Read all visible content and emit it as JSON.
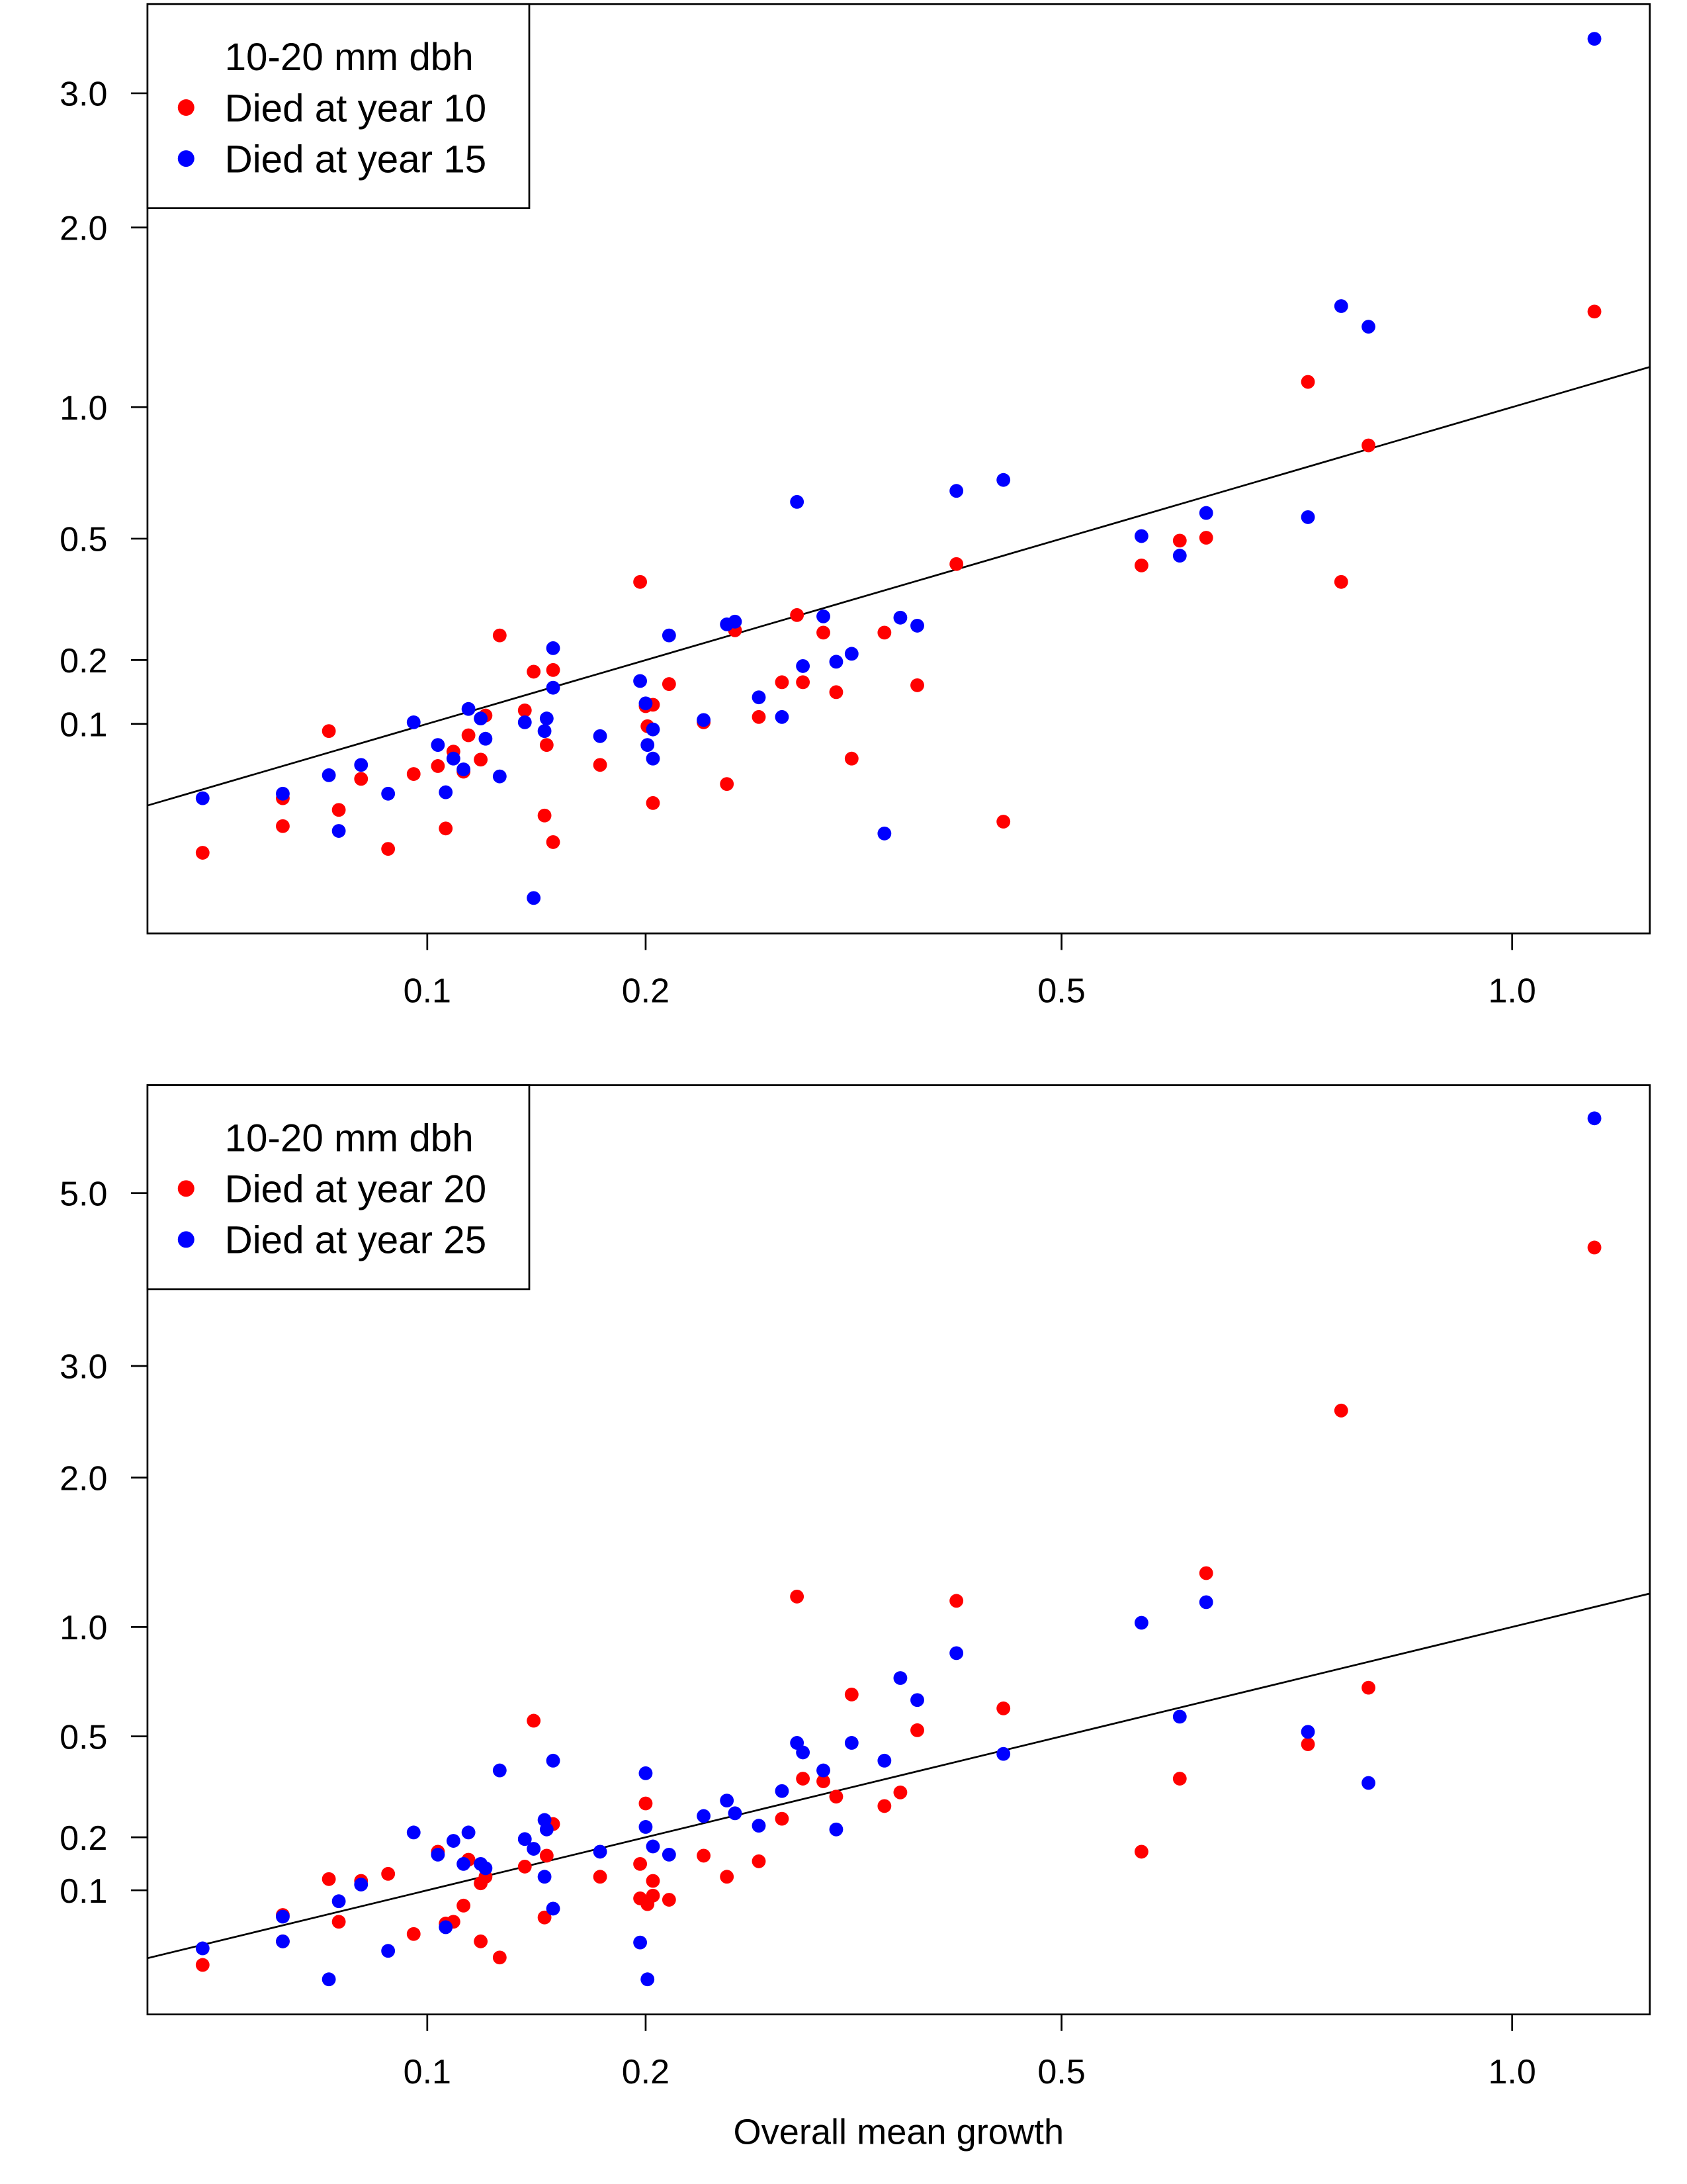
{
  "chart_data": [
    {
      "type": "scatter",
      "x_scale": "power (≈ x^0.45)",
      "y_scale": "power (≈ y^0.45)",
      "xlabel": "",
      "ylabel": "",
      "xlim": [
        0.0245,
        1.19
      ],
      "x_ticks": [
        "0.1",
        "0.2",
        "0.5",
        "1.0"
      ],
      "y_ticks": [
        "0.1",
        "0.2",
        "0.5",
        "1.0",
        "2.0",
        "3.0"
      ],
      "grid": false,
      "legend_placement": "top-left",
      "legend_title": "10-20 mm dbh",
      "reference_line": "y = x",
      "series": [
        {
          "name": "Died at year 10",
          "color": "#ff0000",
          "points": [
            [
              0.035,
              0.005
            ],
            [
              0.054,
              0.014
            ],
            [
              0.054,
              0.029
            ],
            [
              0.067,
              0.091
            ],
            [
              0.07,
              0.022
            ],
            [
              0.077,
              0.043
            ],
            [
              0.086,
              0.006
            ],
            [
              0.095,
              0.047
            ],
            [
              0.104,
              0.054
            ],
            [
              0.107,
              0.013
            ],
            [
              0.11,
              0.068
            ],
            [
              0.114,
              0.049
            ],
            [
              0.116,
              0.086
            ],
            [
              0.121,
              0.06
            ],
            [
              0.123,
              0.111
            ],
            [
              0.129,
              0.249
            ],
            [
              0.14,
              0.118
            ],
            [
              0.144,
              0.179
            ],
            [
              0.149,
              0.019
            ],
            [
              0.15,
              0.075
            ],
            [
              0.153,
              0.182
            ],
            [
              0.153,
              0.008
            ],
            [
              0.176,
              0.055
            ],
            [
              0.197,
              0.376
            ],
            [
              0.2,
              0.124
            ],
            [
              0.201,
              0.097
            ],
            [
              0.204,
              0.126
            ],
            [
              0.204,
              0.026
            ],
            [
              0.213,
              0.158
            ],
            [
              0.233,
              0.102
            ],
            [
              0.247,
              0.039
            ],
            [
              0.252,
              0.26
            ],
            [
              0.267,
              0.109
            ],
            [
              0.282,
              0.161
            ],
            [
              0.292,
              0.294
            ],
            [
              0.296,
              0.161
            ],
            [
              0.31,
              0.255
            ],
            [
              0.319,
              0.145
            ],
            [
              0.33,
              0.061
            ],
            [
              0.354,
              0.255
            ],
            [
              0.379,
              0.156
            ],
            [
              0.41,
              0.425
            ],
            [
              0.449,
              0.016
            ],
            [
              0.575,
              0.421
            ],
            [
              0.613,
              0.494
            ],
            [
              0.64,
              0.503
            ],
            [
              0.75,
              1.118
            ],
            [
              0.788,
              0.376
            ],
            [
              0.82,
              0.835
            ],
            [
              1.112,
              1.485
            ]
          ]
        },
        {
          "name": "Died at year 15",
          "color": "#0000ff",
          "points": [
            [
              0.035,
              0.029
            ],
            [
              0.054,
              0.032
            ],
            [
              0.067,
              0.046
            ],
            [
              0.07,
              0.012
            ],
            [
              0.077,
              0.055
            ],
            [
              0.086,
              0.032
            ],
            [
              0.095,
              0.102
            ],
            [
              0.104,
              0.075
            ],
            [
              0.107,
              0.033
            ],
            [
              0.11,
              0.061
            ],
            [
              0.114,
              0.051
            ],
            [
              0.116,
              0.12
            ],
            [
              0.121,
              0.107
            ],
            [
              0.123,
              0.082
            ],
            [
              0.129,
              0.045
            ],
            [
              0.14,
              0.102
            ],
            [
              0.144,
              0.0
            ],
            [
              0.149,
              0.091
            ],
            [
              0.15,
              0.107
            ],
            [
              0.153,
              0.223
            ],
            [
              0.153,
              0.152
            ],
            [
              0.176,
              0.085
            ],
            [
              0.197,
              0.163
            ],
            [
              0.2,
              0.128
            ],
            [
              0.201,
              0.075
            ],
            [
              0.204,
              0.093
            ],
            [
              0.204,
              0.061
            ],
            [
              0.213,
              0.249
            ],
            [
              0.233,
              0.105
            ],
            [
              0.247,
              0.273
            ],
            [
              0.252,
              0.279
            ],
            [
              0.267,
              0.137
            ],
            [
              0.282,
              0.109
            ],
            [
              0.292,
              0.621
            ],
            [
              0.296,
              0.189
            ],
            [
              0.31,
              0.291
            ],
            [
              0.319,
              0.197
            ],
            [
              0.33,
              0.212
            ],
            [
              0.354,
              0.011
            ],
            [
              0.366,
              0.288
            ],
            [
              0.379,
              0.27
            ],
            [
              0.41,
              0.66
            ],
            [
              0.449,
              0.7
            ],
            [
              0.575,
              0.508
            ],
            [
              0.613,
              0.449
            ],
            [
              0.64,
              0.583
            ],
            [
              0.75,
              0.569
            ],
            [
              0.788,
              1.516
            ],
            [
              0.82,
              1.401
            ],
            [
              1.112,
              3.47
            ]
          ]
        }
      ]
    },
    {
      "type": "scatter",
      "x_scale": "power (≈ x^0.45)",
      "y_scale": "power (≈ y^0.45)",
      "xlabel": "Overall mean growth",
      "ylabel": "",
      "xlim": [
        0.0245,
        1.19
      ],
      "x_ticks": [
        "0.1",
        "0.2",
        "0.5",
        "1.0"
      ],
      "y_ticks": [
        "0.1",
        "0.2",
        "0.5",
        "1.0",
        "2.0",
        "3.0",
        "5.0"
      ],
      "grid": false,
      "legend_placement": "top-left",
      "legend_title": "10-20 mm dbh",
      "reference_line": "y = x",
      "series": [
        {
          "name": "Died at year 20",
          "color": "#ff0000",
          "points": [
            [
              0.035,
              0.02
            ],
            [
              0.054,
              0.066
            ],
            [
              0.054,
              0.038
            ],
            [
              0.067,
              0.118
            ],
            [
              0.07,
              0.058
            ],
            [
              0.077,
              0.115
            ],
            [
              0.086,
              0.127
            ],
            [
              0.095,
              0.045
            ],
            [
              0.104,
              0.169
            ],
            [
              0.107,
              0.056
            ],
            [
              0.11,
              0.058
            ],
            [
              0.114,
              0.078
            ],
            [
              0.116,
              0.153
            ],
            [
              0.121,
              0.111
            ],
            [
              0.121,
              0.038
            ],
            [
              0.123,
              0.122
            ],
            [
              0.129,
              0.025
            ],
            [
              0.14,
              0.14
            ],
            [
              0.144,
              0.56
            ],
            [
              0.149,
              0.063
            ],
            [
              0.15,
              0.161
            ],
            [
              0.153,
              0.231
            ],
            [
              0.176,
              0.122
            ],
            [
              0.197,
              0.145
            ],
            [
              0.2,
              0.284
            ],
            [
              0.197,
              0.088
            ],
            [
              0.201,
              0.08
            ],
            [
              0.204,
              0.115
            ],
            [
              0.204,
              0.092
            ],
            [
              0.213,
              0.086
            ],
            [
              0.233,
              0.161
            ],
            [
              0.247,
              0.122
            ],
            [
              0.267,
              0.15
            ],
            [
              0.282,
              0.244
            ],
            [
              0.292,
              1.173
            ],
            [
              0.296,
              0.356
            ],
            [
              0.31,
              0.348
            ],
            [
              0.319,
              0.303
            ],
            [
              0.33,
              0.669
            ],
            [
              0.354,
              0.277
            ],
            [
              0.366,
              0.315
            ],
            [
              0.379,
              0.523
            ],
            [
              0.41,
              1.148
            ],
            [
              0.449,
              0.61
            ],
            [
              0.575,
              0.169
            ],
            [
              0.613,
              0.356
            ],
            [
              0.64,
              1.317
            ],
            [
              0.75,
              0.471
            ],
            [
              0.788,
              2.574
            ],
            [
              0.82,
              0.699
            ],
            [
              1.112,
              4.31
            ]
          ]
        },
        {
          "name": "Died at year 25",
          "color": "#0000ff",
          "points": [
            [
              0.035,
              0.032
            ],
            [
              0.054,
              0.064
            ],
            [
              0.054,
              0.038
            ],
            [
              0.067,
              0.012
            ],
            [
              0.07,
              0.084
            ],
            [
              0.077,
              0.109
            ],
            [
              0.086,
              0.03
            ],
            [
              0.095,
              0.211
            ],
            [
              0.104,
              0.163
            ],
            [
              0.107,
              0.052
            ],
            [
              0.11,
              0.192
            ],
            [
              0.114,
              0.145
            ],
            [
              0.116,
              0.211
            ],
            [
              0.121,
              0.145
            ],
            [
              0.123,
              0.137
            ],
            [
              0.129,
              0.382
            ],
            [
              0.14,
              0.196
            ],
            [
              0.144,
              0.175
            ],
            [
              0.149,
              0.241
            ],
            [
              0.15,
              0.218
            ],
            [
              0.149,
              0.122
            ],
            [
              0.153,
              0.414
            ],
            [
              0.153,
              0.074
            ],
            [
              0.176,
              0.169
            ],
            [
              0.197,
              0.037
            ],
            [
              0.2,
              0.373
            ],
            [
              0.2,
              0.224
            ],
            [
              0.201,
              0.012
            ],
            [
              0.204,
              0.18
            ],
            [
              0.213,
              0.163
            ],
            [
              0.233,
              0.251
            ],
            [
              0.247,
              0.292
            ],
            [
              0.252,
              0.258
            ],
            [
              0.267,
              0.227
            ],
            [
              0.282,
              0.319
            ],
            [
              0.292,
              0.476
            ],
            [
              0.296,
              0.442
            ],
            [
              0.31,
              0.382
            ],
            [
              0.319,
              0.218
            ],
            [
              0.33,
              0.476
            ],
            [
              0.354,
              0.414
            ],
            [
              0.366,
              0.743
            ],
            [
              0.379,
              0.645
            ],
            [
              0.41,
              0.863
            ],
            [
              0.449,
              0.437
            ],
            [
              0.575,
              1.023
            ],
            [
              0.613,
              0.576
            ],
            [
              0.64,
              1.14
            ],
            [
              0.75,
              0.517
            ],
            [
              0.82,
              0.343
            ],
            [
              1.112,
              6.04
            ]
          ]
        }
      ]
    }
  ]
}
